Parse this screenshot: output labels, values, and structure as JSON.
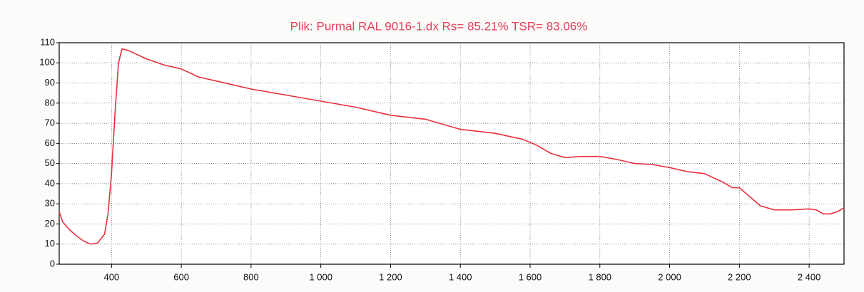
{
  "chart_data": {
    "type": "line",
    "title": "Plik: Purmal RAL 9016-1.dx    Rs= 85.21%    TSR= 83.06%",
    "x": [
      250,
      260,
      280,
      300,
      320,
      340,
      360,
      380,
      390,
      400,
      410,
      420,
      430,
      450,
      500,
      550,
      600,
      650,
      700,
      800,
      900,
      1000,
      1100,
      1200,
      1300,
      1400,
      1500,
      1580,
      1620,
      1660,
      1700,
      1750,
      1800,
      1850,
      1900,
      1950,
      2000,
      2050,
      2100,
      2150,
      2180,
      2200,
      2220,
      2260,
      2300,
      2350,
      2400,
      2420,
      2440,
      2460,
      2480,
      2500
    ],
    "series": [
      {
        "color": "#e8303f",
        "values": [
          26,
          21,
          17,
          14,
          11.5,
          10,
          10.5,
          15,
          25,
          45,
          75,
          100,
          107,
          106,
          102,
          99,
          97,
          93,
          91,
          87,
          84,
          81,
          78,
          74,
          72,
          67,
          65,
          62,
          59,
          55,
          53,
          53.5,
          53.5,
          52,
          50,
          49.5,
          48,
          46,
          45,
          41,
          38,
          38,
          35,
          29,
          27,
          27,
          27.5,
          27,
          25,
          25,
          26,
          28
        ]
      }
    ],
    "xlim": [
      250,
      2500
    ],
    "ylim": [
      0,
      110
    ],
    "xticks": [
      400,
      600,
      800,
      {
        "value": 1000,
        "label": "1 000"
      },
      {
        "value": 1200,
        "label": "1 200"
      },
      {
        "value": 1400,
        "label": "1 400"
      },
      {
        "value": 1600,
        "label": "1 600"
      },
      {
        "value": 1800,
        "label": "1 800"
      },
      {
        "value": 2000,
        "label": "2 000"
      },
      {
        "value": 2200,
        "label": "2 200"
      },
      {
        "value": 2400,
        "label": "2 400"
      }
    ],
    "yticks": [
      0,
      10,
      20,
      30,
      40,
      50,
      60,
      70,
      80,
      90,
      100,
      110
    ],
    "grid": true
  }
}
